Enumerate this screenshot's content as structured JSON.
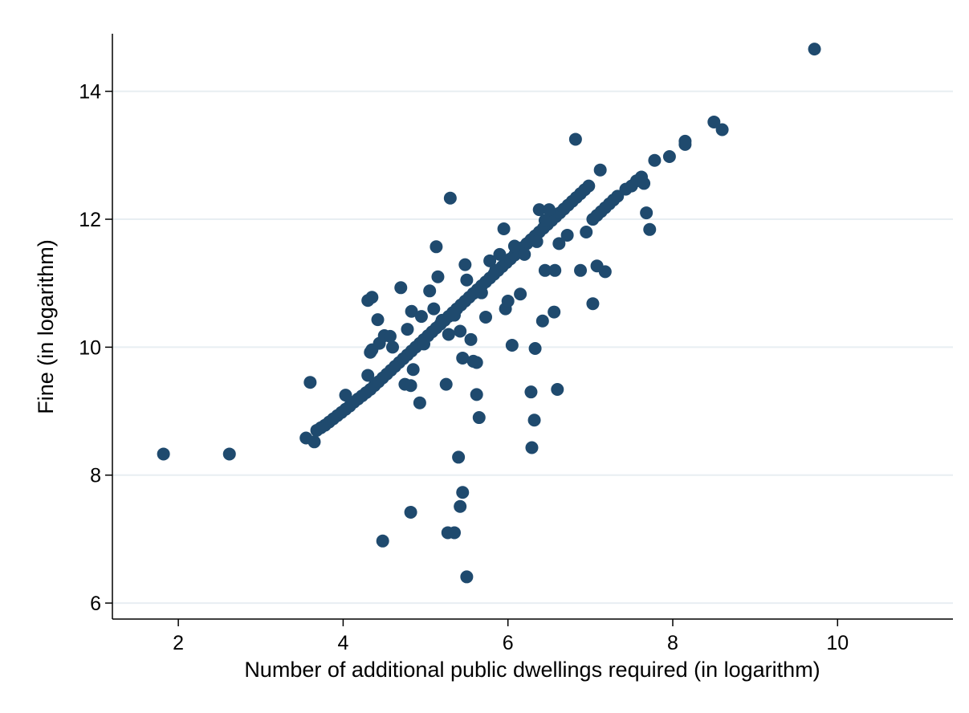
{
  "chart_data": {
    "type": "scatter",
    "title": "",
    "xlabel": "Number of additional public dwellings required (in logarithm)",
    "ylabel": "Fine (in logarithm)",
    "xlim": [
      1.2,
      11.4
    ],
    "ylim": [
      5.75,
      14.9
    ],
    "xticks": [
      2,
      4,
      6,
      8,
      10
    ],
    "yticks": [
      6,
      8,
      10,
      12,
      14
    ],
    "grid": "horizontal",
    "legend": "none",
    "colors": {
      "marker": "#1f4a6e",
      "grid": "#e8eef2",
      "axis": "#000000",
      "background": "#ffffff"
    },
    "points": [
      [
        1.82,
        8.33
      ],
      [
        2.62,
        8.33
      ],
      [
        3.55,
        8.58
      ],
      [
        3.6,
        9.45
      ],
      [
        3.65,
        8.52
      ],
      [
        3.68,
        8.7
      ],
      [
        3.73,
        8.74
      ],
      [
        3.78,
        8.78
      ],
      [
        3.83,
        8.83
      ],
      [
        3.88,
        8.88
      ],
      [
        3.93,
        8.93
      ],
      [
        3.98,
        8.98
      ],
      [
        4.03,
        9.03
      ],
      [
        4.08,
        9.08
      ],
      [
        4.03,
        9.25
      ],
      [
        4.13,
        9.14
      ],
      [
        4.18,
        9.19
      ],
      [
        4.23,
        9.24
      ],
      [
        4.28,
        9.29
      ],
      [
        4.33,
        9.34
      ],
      [
        4.38,
        9.4
      ],
      [
        4.43,
        9.46
      ],
      [
        4.48,
        9.52
      ],
      [
        4.53,
        9.58
      ],
      [
        4.58,
        9.64
      ],
      [
        4.63,
        9.7
      ],
      [
        4.68,
        9.76
      ],
      [
        4.73,
        9.82
      ],
      [
        4.78,
        9.88
      ],
      [
        4.83,
        9.94
      ],
      [
        4.88,
        10.0
      ],
      [
        4.93,
        10.06
      ],
      [
        4.98,
        10.12
      ],
      [
        5.03,
        10.18
      ],
      [
        5.08,
        10.24
      ],
      [
        5.13,
        10.3
      ],
      [
        5.18,
        10.36
      ],
      [
        5.23,
        10.42
      ],
      [
        5.28,
        10.48
      ],
      [
        5.33,
        10.54
      ],
      [
        5.38,
        10.6
      ],
      [
        5.43,
        10.66
      ],
      [
        5.48,
        10.72
      ],
      [
        5.53,
        10.78
      ],
      [
        5.58,
        10.84
      ],
      [
        5.63,
        10.9
      ],
      [
        5.68,
        10.96
      ],
      [
        5.73,
        11.02
      ],
      [
        5.78,
        11.08
      ],
      [
        5.83,
        11.14
      ],
      [
        5.88,
        11.2
      ],
      [
        5.93,
        11.26
      ],
      [
        5.98,
        11.32
      ],
      [
        6.03,
        11.38
      ],
      [
        6.08,
        11.44
      ],
      [
        6.13,
        11.5
      ],
      [
        6.18,
        11.56
      ],
      [
        6.23,
        11.62
      ],
      [
        6.28,
        11.68
      ],
      [
        6.33,
        11.74
      ],
      [
        6.38,
        11.8
      ],
      [
        6.43,
        11.86
      ],
      [
        6.48,
        11.92
      ],
      [
        6.53,
        11.98
      ],
      [
        6.58,
        12.04
      ],
      [
        6.63,
        12.1
      ],
      [
        6.68,
        12.16
      ],
      [
        6.73,
        12.22
      ],
      [
        6.78,
        12.28
      ],
      [
        6.83,
        12.34
      ],
      [
        6.88,
        12.4
      ],
      [
        6.93,
        12.46
      ],
      [
        6.98,
        12.52
      ],
      [
        7.03,
        12.0
      ],
      [
        7.08,
        12.06
      ],
      [
        7.13,
        12.12
      ],
      [
        7.18,
        12.18
      ],
      [
        7.23,
        12.24
      ],
      [
        7.28,
        12.3
      ],
      [
        7.33,
        12.36
      ],
      [
        7.43,
        12.47
      ],
      [
        7.5,
        12.52
      ],
      [
        7.56,
        12.6
      ],
      [
        7.62,
        12.66
      ],
      [
        7.65,
        12.56
      ],
      [
        4.3,
        10.73
      ],
      [
        4.35,
        10.78
      ],
      [
        4.33,
        9.92
      ],
      [
        4.35,
        9.96
      ],
      [
        4.3,
        9.56
      ],
      [
        4.42,
        10.43
      ],
      [
        4.44,
        10.06
      ],
      [
        4.5,
        10.18
      ],
      [
        4.57,
        10.17
      ],
      [
        4.6,
        10.0
      ],
      [
        4.7,
        10.93
      ],
      [
        4.75,
        9.42
      ],
      [
        4.78,
        10.28
      ],
      [
        4.83,
        10.56
      ],
      [
        4.85,
        9.65
      ],
      [
        4.82,
        9.4
      ],
      [
        4.93,
        9.13
      ],
      [
        4.95,
        10.48
      ],
      [
        4.98,
        10.05
      ],
      [
        5.05,
        10.88
      ],
      [
        5.1,
        10.6
      ],
      [
        5.13,
        11.57
      ],
      [
        5.15,
        11.1
      ],
      [
        5.2,
        10.42
      ],
      [
        5.25,
        9.42
      ],
      [
        5.3,
        12.33
      ],
      [
        5.28,
        10.2
      ],
      [
        5.35,
        10.5
      ],
      [
        5.42,
        10.25
      ],
      [
        5.45,
        9.83
      ],
      [
        5.48,
        11.29
      ],
      [
        5.5,
        11.05
      ],
      [
        5.55,
        10.12
      ],
      [
        5.58,
        9.78
      ],
      [
        5.62,
        9.76
      ],
      [
        5.62,
        9.26
      ],
      [
        5.65,
        8.9
      ],
      [
        5.68,
        10.85
      ],
      [
        5.73,
        10.47
      ],
      [
        5.78,
        11.35
      ],
      [
        5.85,
        11.2
      ],
      [
        5.9,
        11.45
      ],
      [
        5.95,
        11.85
      ],
      [
        5.97,
        10.6
      ],
      [
        6.0,
        10.72
      ],
      [
        6.05,
        10.03
      ],
      [
        6.08,
        11.58
      ],
      [
        6.15,
        10.83
      ],
      [
        6.2,
        11.45
      ],
      [
        6.28,
        9.3
      ],
      [
        6.29,
        8.43
      ],
      [
        6.32,
        8.86
      ],
      [
        6.33,
        9.98
      ],
      [
        6.35,
        11.65
      ],
      [
        6.38,
        12.15
      ],
      [
        6.42,
        10.41
      ],
      [
        6.45,
        11.2
      ],
      [
        6.45,
        11.98
      ],
      [
        6.5,
        12.15
      ],
      [
        6.56,
        10.55
      ],
      [
        6.57,
        11.2
      ],
      [
        6.6,
        9.34
      ],
      [
        6.62,
        11.62
      ],
      [
        6.72,
        11.75
      ],
      [
        6.82,
        13.25
      ],
      [
        6.88,
        11.2
      ],
      [
        6.95,
        11.8
      ],
      [
        7.03,
        10.68
      ],
      [
        7.08,
        11.27
      ],
      [
        7.12,
        12.77
      ],
      [
        7.18,
        11.18
      ],
      [
        7.68,
        12.1
      ],
      [
        7.72,
        11.84
      ],
      [
        7.78,
        12.92
      ],
      [
        7.96,
        12.98
      ],
      [
        8.15,
        13.17
      ],
      [
        8.15,
        13.22
      ],
      [
        8.5,
        13.52
      ],
      [
        8.6,
        13.4
      ],
      [
        9.72,
        14.66
      ],
      [
        4.48,
        6.97
      ],
      [
        4.82,
        7.42
      ],
      [
        5.27,
        7.1
      ],
      [
        5.35,
        7.1
      ],
      [
        5.4,
        8.28
      ],
      [
        5.42,
        7.51
      ],
      [
        5.45,
        7.73
      ],
      [
        5.5,
        6.41
      ]
    ]
  }
}
